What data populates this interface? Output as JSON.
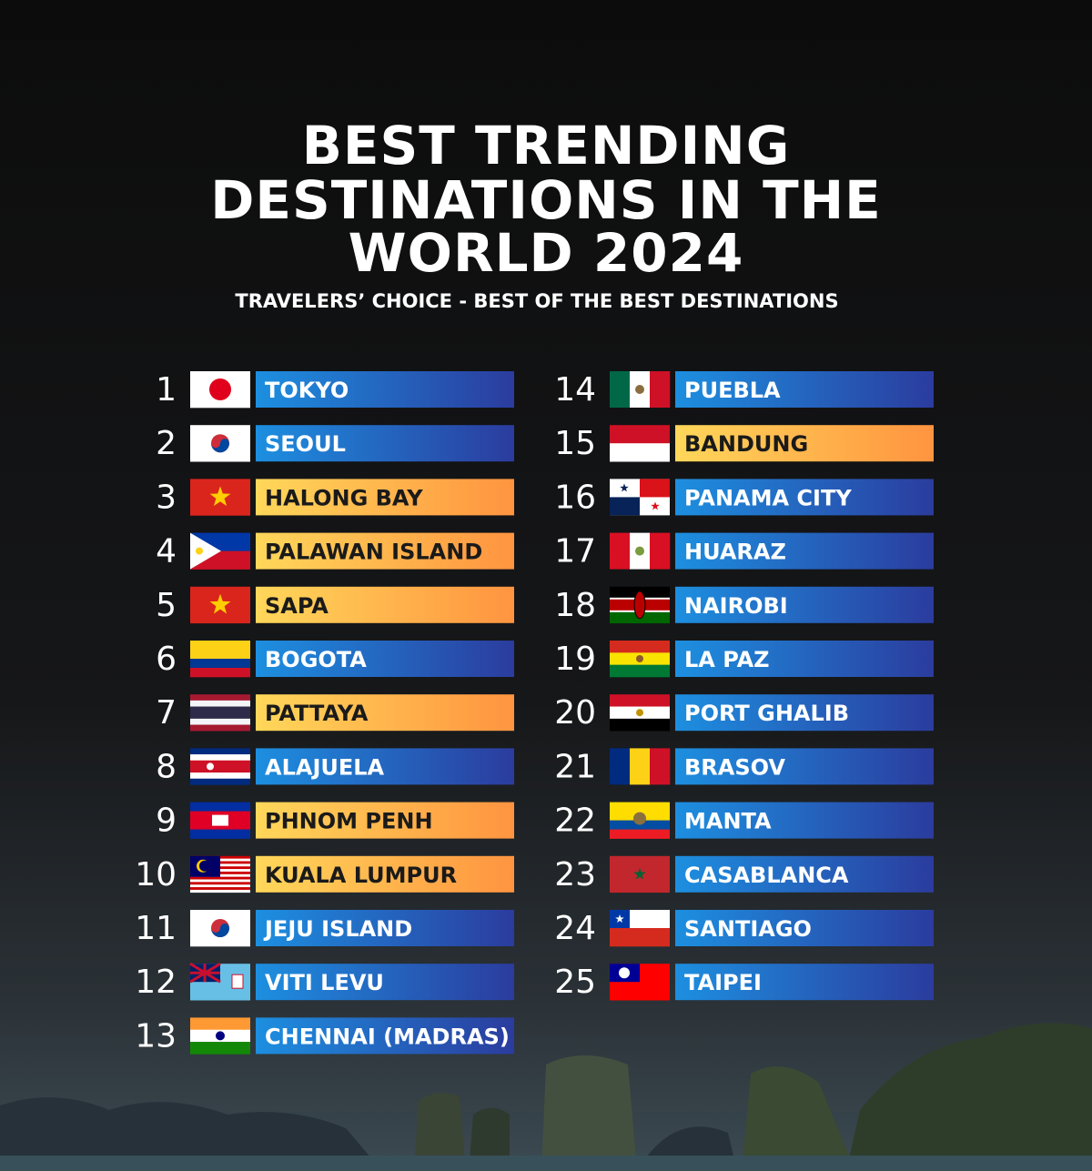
{
  "header": {
    "title_lines": [
      "BEST TRENDING",
      "DESTINATIONS IN THE",
      "WORLD 2024"
    ],
    "subtitle": "TRAVELERS’ CHOICE - BEST OF THE BEST DESTINATIONS"
  },
  "destinations": [
    {
      "rank": 1,
      "name": "TOKYO",
      "style": "blue"
    },
    {
      "rank": 2,
      "name": "SEOUL",
      "style": "blue"
    },
    {
      "rank": 3,
      "name": "HALONG BAY",
      "style": "orange"
    },
    {
      "rank": 4,
      "name": "PALAWAN ISLAND",
      "style": "orange"
    },
    {
      "rank": 5,
      "name": "SAPA",
      "style": "orange"
    },
    {
      "rank": 6,
      "name": "BOGOTA",
      "style": "blue"
    },
    {
      "rank": 7,
      "name": "PATTAYA",
      "style": "orange"
    },
    {
      "rank": 8,
      "name": "ALAJUELA",
      "style": "blue"
    },
    {
      "rank": 9,
      "name": "PHNOM PENH",
      "style": "orange"
    },
    {
      "rank": 10,
      "name": "KUALA LUMPUR",
      "style": "orange"
    },
    {
      "rank": 11,
      "name": "JEJU ISLAND",
      "style": "blue"
    },
    {
      "rank": 12,
      "name": "VITI LEVU",
      "style": "blue"
    },
    {
      "rank": 13,
      "name": "CHENNAI (MADRAS)",
      "style": "blue"
    },
    {
      "rank": 14,
      "name": "PUEBLA",
      "style": "blue"
    },
    {
      "rank": 15,
      "name": "BANDUNG",
      "style": "orange"
    },
    {
      "rank": 16,
      "name": "PANAMA CITY",
      "style": "blue"
    },
    {
      "rank": 17,
      "name": "HUARAZ",
      "style": "blue"
    },
    {
      "rank": 18,
      "name": "NAIROBI",
      "style": "blue"
    },
    {
      "rank": 19,
      "name": "LA PAZ",
      "style": "blue"
    },
    {
      "rank": 20,
      "name": "PORT GHALIB",
      "style": "blue"
    },
    {
      "rank": 21,
      "name": "BRASOV",
      "style": "blue"
    },
    {
      "rank": 22,
      "name": "MANTA",
      "style": "blue"
    },
    {
      "rank": 23,
      "name": "CASABLANCA",
      "style": "blue"
    },
    {
      "rank": 24,
      "name": "SANTIAGO",
      "style": "blue"
    },
    {
      "rank": 25,
      "name": "TAIPEI",
      "style": "blue"
    }
  ]
}
